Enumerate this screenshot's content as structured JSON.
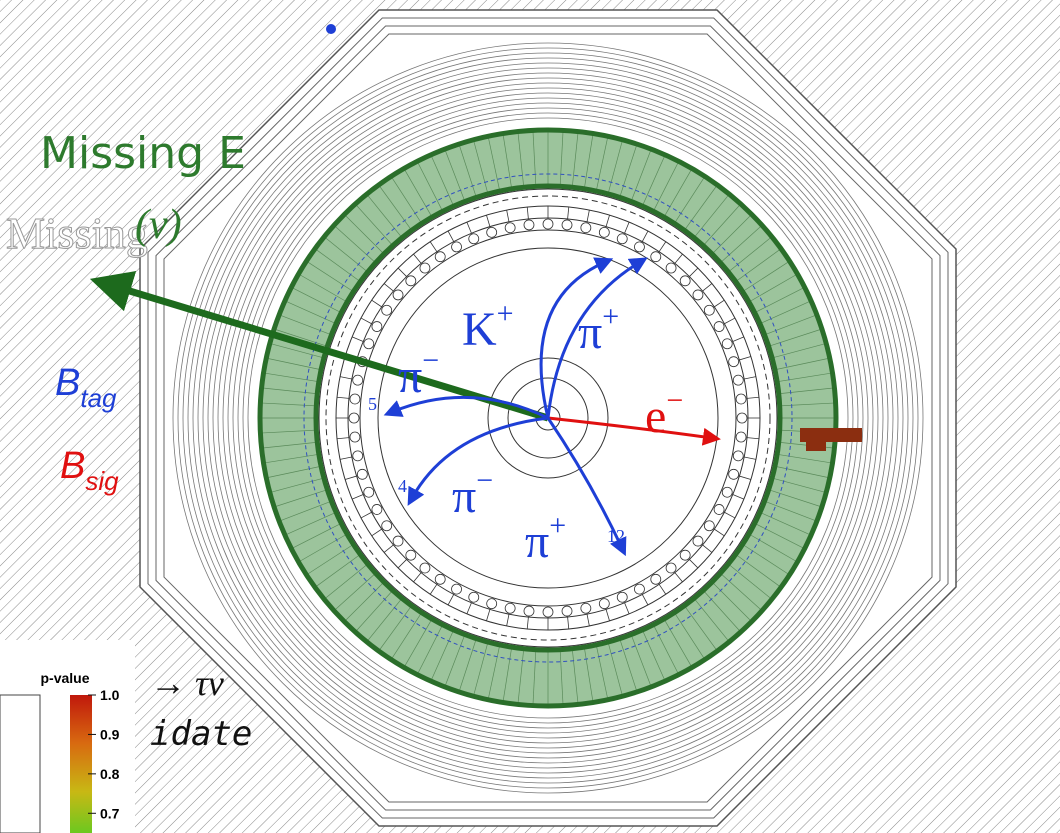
{
  "labels": {
    "missing_energy": "Missing E",
    "neutrino": "(ν)",
    "ghost": "Missing",
    "b_tag": {
      "base": "B",
      "sub": "tag"
    },
    "b_sig": {
      "base": "B",
      "sub": "sig"
    },
    "decay": "→ τν",
    "candidate_fragment": "idate"
  },
  "tracks": [
    {
      "particle": "K",
      "charge": "+"
    },
    {
      "particle": "π",
      "charge": "+"
    },
    {
      "particle": "π",
      "charge": "−"
    },
    {
      "particle": "e",
      "charge": "−"
    },
    {
      "particle": "π",
      "charge": "−"
    },
    {
      "particle": "π",
      "charge": "+"
    }
  ],
  "track_ids": [
    "5",
    "4",
    "12"
  ],
  "colorbar": {
    "title": "p-value",
    "ticks": [
      "1.0",
      "0.9",
      "0.8",
      "0.7"
    ]
  }
}
